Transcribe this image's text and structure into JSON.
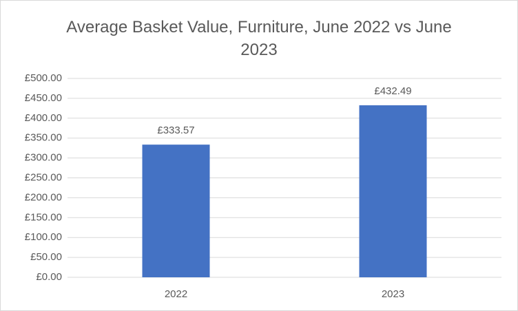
{
  "chart_data": {
    "type": "bar",
    "title": "Average Basket Value, Furniture, June 2022 vs June 2023",
    "categories": [
      "2022",
      "2023"
    ],
    "values": [
      333.57,
      432.49
    ],
    "value_labels": [
      "£333.57",
      "£432.49"
    ],
    "color": "#4472c4",
    "ylim": [
      0,
      500
    ],
    "yticks": [
      {
        "value": 0,
        "label": "£0.00"
      },
      {
        "value": 50,
        "label": "£50.00"
      },
      {
        "value": 100,
        "label": "£100.00"
      },
      {
        "value": 150,
        "label": "£150.00"
      },
      {
        "value": 200,
        "label": "£200.00"
      },
      {
        "value": 250,
        "label": "£250.00"
      },
      {
        "value": 300,
        "label": "£300.00"
      },
      {
        "value": 350,
        "label": "£350.00"
      },
      {
        "value": 400,
        "label": "£400.00"
      },
      {
        "value": 450,
        "label": "£450.00"
      },
      {
        "value": 500,
        "label": "£500.00"
      }
    ],
    "grid": true
  }
}
